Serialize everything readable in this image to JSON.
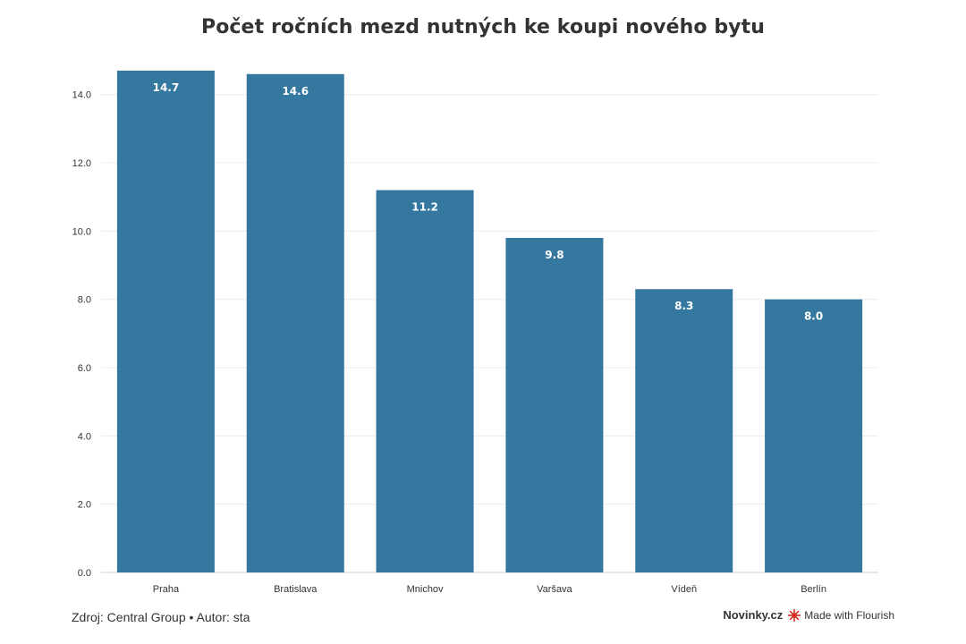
{
  "chart_data": {
    "type": "bar",
    "title": "Počet ročních mezd nutných ke koupi nového bytu",
    "categories": [
      "Praha",
      "Bratislava",
      "Mnichov",
      "Varšava",
      "Vídeň",
      "Berlín"
    ],
    "values": [
      14.7,
      14.6,
      11.2,
      9.8,
      8.3,
      8.0
    ],
    "value_labels": [
      "14.7",
      "14.6",
      "11.2",
      "9.8",
      "8.3",
      "8.0"
    ],
    "ylim": [
      0,
      14.7
    ],
    "yticks": [
      "0.0",
      "2.0",
      "4.0",
      "6.0",
      "8.0",
      "10.0",
      "12.0",
      "14.0"
    ],
    "ytick_values": [
      0,
      2,
      4,
      6,
      8,
      10,
      12,
      14
    ],
    "xlabel": "",
    "ylabel": "",
    "grid": true,
    "bar_color": "#35789f",
    "label_color": "#ffffff"
  },
  "footer": {
    "source": "Zdroj: Central Group • Autor: sta",
    "brand": "Novinky.cz",
    "flourish": "Made with Flourish",
    "flourish_icon": "flourish-logo-icon",
    "flourish_icon_color": "#d8301f"
  }
}
